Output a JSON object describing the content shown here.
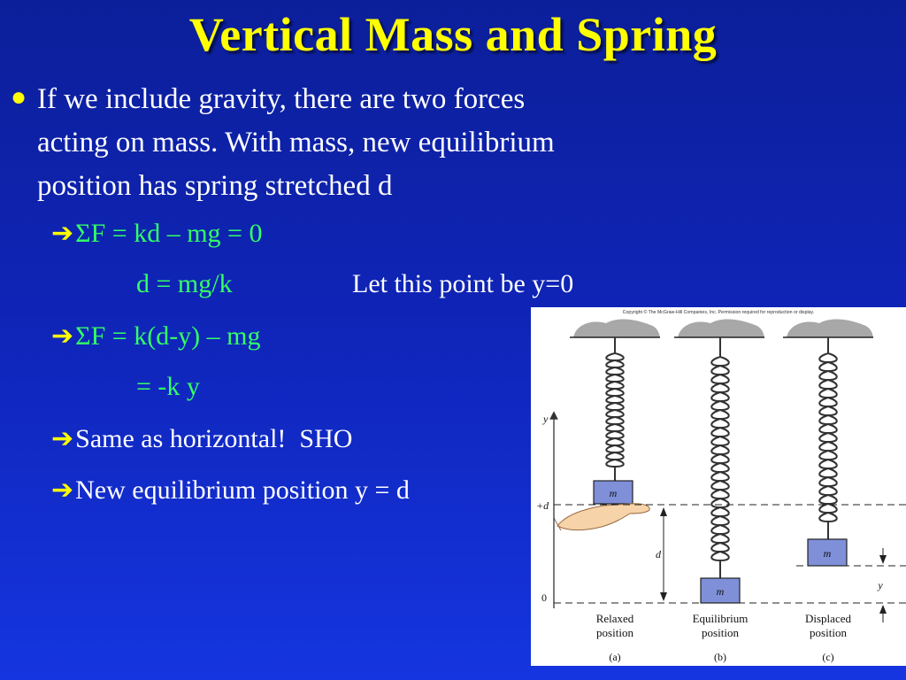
{
  "slide": {
    "title": "Vertical Mass and Spring",
    "bullet": "If we include gravity, there are two forces\nacting on mass. With mass,  new equilibrium\nposition has spring stretched d",
    "lines": [
      {
        "text": "ΣF = kd – mg = 0",
        "arrow": true
      },
      {
        "text": "d = mg/k",
        "arrow": false
      },
      {
        "text": "ΣF = k(d-y) – mg",
        "arrow": true
      },
      {
        "text": "= -k y",
        "arrow": false
      },
      {
        "text": "Same as horizontal!  SHO",
        "arrow": true
      },
      {
        "text": "New equilibrium position y = d",
        "arrow": true
      }
    ],
    "note": "Let this point be y=0"
  },
  "figure": {
    "copyright": "Copyright © The McGraw-Hill Companies, Inc. Permission required for reproduction or display.",
    "mass_label": "m",
    "axis_label": "y",
    "d_label": "+d",
    "zero_label": "0",
    "d_dim": "d",
    "y_dim": "y",
    "panels": [
      {
        "caption1": "Relaxed",
        "caption2": "position",
        "letter": "(a)"
      },
      {
        "caption1": "Equilibrium",
        "caption2": "position",
        "letter": "(b)"
      },
      {
        "caption1": "Displaced",
        "caption2": "position",
        "letter": "(c)"
      }
    ]
  },
  "colors": {
    "title": "#ffff00",
    "green_text": "#33ff66",
    "arrow": "#ffff00",
    "mass_fill": "#7f8fd8"
  }
}
